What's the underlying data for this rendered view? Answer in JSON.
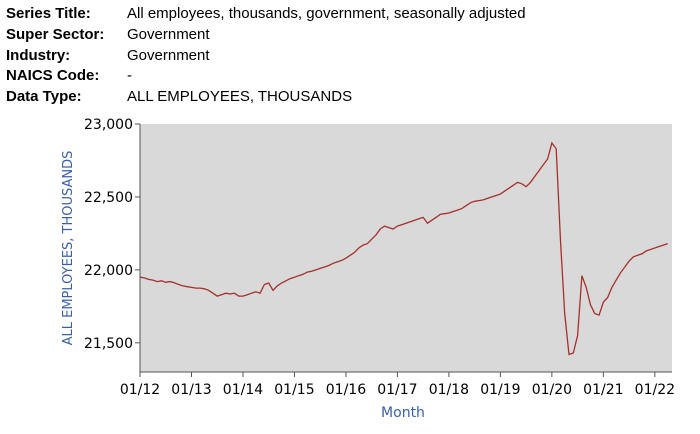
{
  "series_info": [
    {
      "label": "Series Title:",
      "value": "All employees, thousands, government, seasonally adjusted"
    },
    {
      "label": "Super Sector:",
      "value": "Government"
    },
    {
      "label": "Industry:",
      "value": "Government"
    },
    {
      "label": "NAICS Code:",
      "value": "-"
    },
    {
      "label": "Data Type:",
      "value": "ALL EMPLOYEES, THOUSANDS"
    }
  ],
  "colors": {
    "plot_background": "#d9d9d9",
    "line": "#a5302b",
    "axis_title": "#3a5fa8",
    "tick_text": "#000000"
  },
  "chart_data": {
    "type": "line",
    "title": "",
    "xlabel": "Month",
    "ylabel": "ALL EMPLOYEES, THOUSANDS",
    "ylim": [
      21300,
      23000
    ],
    "grid": false,
    "y_ticks": [
      {
        "value": 21500,
        "label": "21,500"
      },
      {
        "value": 22000,
        "label": "22,000"
      },
      {
        "value": 22500,
        "label": "22,500"
      },
      {
        "value": 23000,
        "label": "23,000"
      }
    ],
    "x_ticks": [
      {
        "value": "2012-01",
        "label": "01/12"
      },
      {
        "value": "2013-01",
        "label": "01/13"
      },
      {
        "value": "2014-01",
        "label": "01/14"
      },
      {
        "value": "2015-01",
        "label": "01/15"
      },
      {
        "value": "2016-01",
        "label": "01/16"
      },
      {
        "value": "2017-01",
        "label": "01/17"
      },
      {
        "value": "2018-01",
        "label": "01/18"
      },
      {
        "value": "2019-01",
        "label": "01/19"
      },
      {
        "value": "2020-01",
        "label": "01/20"
      },
      {
        "value": "2021-01",
        "label": "01/21"
      },
      {
        "value": "2022-01",
        "label": "01/22"
      }
    ],
    "xlim": [
      "2012-01",
      "2022-05"
    ],
    "series": [
      {
        "points": [
          [
            "2012-01",
            21950
          ],
          [
            "2012-02",
            21945
          ],
          [
            "2012-03",
            21935
          ],
          [
            "2012-04",
            21930
          ],
          [
            "2012-05",
            21920
          ],
          [
            "2012-06",
            21925
          ],
          [
            "2012-07",
            21915
          ],
          [
            "2012-08",
            21920
          ],
          [
            "2012-09",
            21912
          ],
          [
            "2012-10",
            21900
          ],
          [
            "2012-11",
            21890
          ],
          [
            "2012-12",
            21885
          ],
          [
            "2013-01",
            21880
          ],
          [
            "2013-02",
            21875
          ],
          [
            "2013-03",
            21875
          ],
          [
            "2013-04",
            21870
          ],
          [
            "2013-05",
            21860
          ],
          [
            "2013-06",
            21840
          ],
          [
            "2013-07",
            21820
          ],
          [
            "2013-08",
            21830
          ],
          [
            "2013-09",
            21840
          ],
          [
            "2013-10",
            21835
          ],
          [
            "2013-11",
            21840
          ],
          [
            "2013-12",
            21820
          ],
          [
            "2014-01",
            21820
          ],
          [
            "2014-02",
            21830
          ],
          [
            "2014-03",
            21840
          ],
          [
            "2014-04",
            21850
          ],
          [
            "2014-05",
            21840
          ],
          [
            "2014-06",
            21900
          ],
          [
            "2014-07",
            21910
          ],
          [
            "2014-08",
            21860
          ],
          [
            "2014-09",
            21890
          ],
          [
            "2014-10",
            21910
          ],
          [
            "2014-11",
            21925
          ],
          [
            "2014-12",
            21940
          ],
          [
            "2015-01",
            21950
          ],
          [
            "2015-02",
            21960
          ],
          [
            "2015-03",
            21970
          ],
          [
            "2015-04",
            21985
          ],
          [
            "2015-05",
            21990
          ],
          [
            "2015-06",
            22000
          ],
          [
            "2015-07",
            22010
          ],
          [
            "2015-08",
            22020
          ],
          [
            "2015-09",
            22030
          ],
          [
            "2015-10",
            22045
          ],
          [
            "2015-11",
            22055
          ],
          [
            "2015-12",
            22065
          ],
          [
            "2016-01",
            22080
          ],
          [
            "2016-02",
            22100
          ],
          [
            "2016-03",
            22120
          ],
          [
            "2016-04",
            22150
          ],
          [
            "2016-05",
            22170
          ],
          [
            "2016-06",
            22180
          ],
          [
            "2016-07",
            22210
          ],
          [
            "2016-08",
            22240
          ],
          [
            "2016-09",
            22280
          ],
          [
            "2016-10",
            22300
          ],
          [
            "2016-11",
            22290
          ],
          [
            "2016-12",
            22280
          ],
          [
            "2017-01",
            22300
          ],
          [
            "2017-02",
            22310
          ],
          [
            "2017-03",
            22320
          ],
          [
            "2017-04",
            22330
          ],
          [
            "2017-05",
            22340
          ],
          [
            "2017-06",
            22350
          ],
          [
            "2017-07",
            22360
          ],
          [
            "2017-08",
            22320
          ],
          [
            "2017-09",
            22340
          ],
          [
            "2017-10",
            22360
          ],
          [
            "2017-11",
            22380
          ],
          [
            "2017-12",
            22385
          ],
          [
            "2018-01",
            22390
          ],
          [
            "2018-02",
            22400
          ],
          [
            "2018-03",
            22410
          ],
          [
            "2018-04",
            22420
          ],
          [
            "2018-05",
            22440
          ],
          [
            "2018-06",
            22460
          ],
          [
            "2018-07",
            22470
          ],
          [
            "2018-08",
            22475
          ],
          [
            "2018-09",
            22480
          ],
          [
            "2018-10",
            22490
          ],
          [
            "2018-11",
            22500
          ],
          [
            "2018-12",
            22510
          ],
          [
            "2019-01",
            22520
          ],
          [
            "2019-02",
            22540
          ],
          [
            "2019-03",
            22560
          ],
          [
            "2019-04",
            22580
          ],
          [
            "2019-05",
            22600
          ],
          [
            "2019-06",
            22590
          ],
          [
            "2019-07",
            22570
          ],
          [
            "2019-08",
            22600
          ],
          [
            "2019-09",
            22640
          ],
          [
            "2019-10",
            22680
          ],
          [
            "2019-11",
            22720
          ],
          [
            "2019-12",
            22760
          ],
          [
            "2020-01",
            22870
          ],
          [
            "2020-02",
            22830
          ],
          [
            "2020-03",
            22200
          ],
          [
            "2020-04",
            21700
          ],
          [
            "2020-05",
            21420
          ],
          [
            "2020-06",
            21430
          ],
          [
            "2020-07",
            21550
          ],
          [
            "2020-08",
            21960
          ],
          [
            "2020-09",
            21880
          ],
          [
            "2020-10",
            21760
          ],
          [
            "2020-11",
            21700
          ],
          [
            "2020-12",
            21690
          ],
          [
            "2021-01",
            21780
          ],
          [
            "2021-02",
            21810
          ],
          [
            "2021-03",
            21880
          ],
          [
            "2021-04",
            21930
          ],
          [
            "2021-05",
            21980
          ],
          [
            "2021-06",
            22020
          ],
          [
            "2021-07",
            22060
          ],
          [
            "2021-08",
            22090
          ],
          [
            "2021-09",
            22100
          ],
          [
            "2021-10",
            22110
          ],
          [
            "2021-11",
            22130
          ],
          [
            "2021-12",
            22140
          ],
          [
            "2022-01",
            22150
          ],
          [
            "2022-02",
            22160
          ],
          [
            "2022-03",
            22170
          ],
          [
            "2022-04",
            22180
          ]
        ]
      }
    ]
  }
}
